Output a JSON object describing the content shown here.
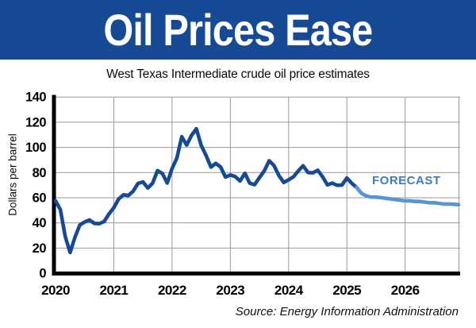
{
  "header": {
    "title": "Oil Prices Ease",
    "subtitle": "West Texas Intermediate crude oil price estimates"
  },
  "chart_data": {
    "type": "line",
    "title": "Oil Prices Ease",
    "subtitle": "West Texas Intermediate crude oil price estimates",
    "xlabel": "",
    "ylabel": "Dollars per barrel",
    "ylim": [
      0,
      140
    ],
    "yticks": [
      0,
      20,
      40,
      60,
      80,
      100,
      120,
      140
    ],
    "xticks": [
      2020,
      2021,
      2022,
      2023,
      2024,
      2025,
      2026
    ],
    "x_start": "2020-01",
    "x_end": "2026-12",
    "grid": true,
    "forecast_label": "FORECAST",
    "forecast_start": "2025-03",
    "series": [
      {
        "name": "historical",
        "color": "#174a94",
        "start_index": 0,
        "values": [
          57.5,
          50.5,
          29.2,
          16.5,
          28.6,
          38.3,
          40.7,
          42.3,
          39.6,
          39.4,
          41.0,
          47.0,
          52.0,
          59.0,
          62.3,
          61.7,
          65.2,
          71.4,
          72.5,
          67.7,
          71.6,
          81.5,
          79.2,
          71.7,
          83.2,
          91.6,
          108.5,
          101.8,
          109.5,
          114.8,
          101.6,
          93.7,
          84.3,
          87.3,
          84.4,
          76.4,
          78.1,
          76.8,
          73.3,
          79.4,
          71.6,
          70.3,
          76.0,
          81.4,
          89.4,
          85.5,
          77.7,
          72.1,
          74.2,
          76.6,
          81.3,
          85.4,
          80.0,
          79.8,
          81.8,
          76.7,
          70.2,
          71.6,
          69.9,
          70.1,
          75.7,
          71.5,
          68.2
        ]
      },
      {
        "name": "forecast",
        "color": "#5b94d2",
        "start_index": 62,
        "values": [
          68.2,
          63.5,
          61.5,
          60.5,
          60.5,
          60.0,
          59.5,
          59.0,
          58.5,
          58.0,
          57.5,
          57.5,
          57.0,
          57.0,
          56.5,
          56.0,
          56.0,
          55.5,
          55.0,
          55.0,
          54.8,
          54.5
        ]
      }
    ]
  },
  "source": "Source: Energy Information Administration",
  "colors": {
    "header_bg": "#174a94",
    "header_text": "#ffffff",
    "historical_line": "#174a94",
    "forecast_line": "#5b94d2",
    "forecast_label": "#3d7cbe",
    "gridline": "#999999",
    "axis": "#000000"
  }
}
